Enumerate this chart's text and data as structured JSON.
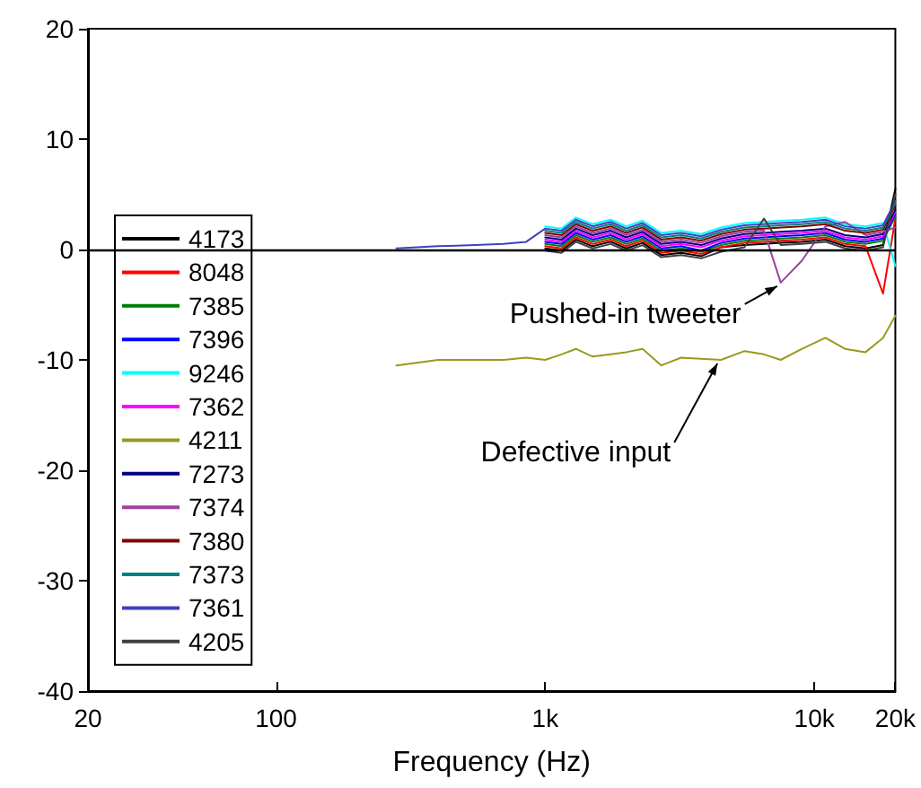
{
  "chart_data": {
    "type": "line",
    "xlabel": "Frequency (Hz)",
    "log": "x",
    "legend": "left",
    "grid": false,
    "line_style": "solid",
    "marker": "none",
    "xlim": [
      20,
      20000
    ],
    "xticks": [
      20,
      100,
      {
        "value": 1000,
        "label": "1k"
      },
      {
        "value": 10000,
        "label": "10k"
      },
      {
        "value": 20000,
        "label": "20k"
      }
    ],
    "ylim": [
      -40,
      20
    ],
    "yticks": [
      -40,
      -30,
      -20,
      -10,
      0,
      10,
      20
    ],
    "x": [
      280,
      400,
      550,
      700,
      850,
      1000,
      1150,
      1300,
      1500,
      1750,
      2000,
      2300,
      2700,
      3200,
      3800,
      4500,
      5500,
      6500,
      7500,
      9000,
      11000,
      13000,
      15500,
      18000,
      20000
    ],
    "ref_lines": [
      {
        "axis": "y",
        "value": 0,
        "color": "#000000"
      }
    ],
    "annotations": [
      {
        "text": "Pushed-in tweeter",
        "x": 7500,
        "y": -3
      },
      {
        "text": "Defective input",
        "x": 4500,
        "y": -10
      }
    ],
    "series": [
      {
        "name": "4173",
        "color": "#000000",
        "values": [
          null,
          null,
          null,
          null,
          null,
          0.1,
          -0.1,
          0.9,
          0.3,
          0.7,
          0.1,
          0.6,
          -0.5,
          -0.3,
          -0.6,
          0.2,
          0.4,
          0.5,
          0.6,
          0.7,
          0.9,
          0.3,
          0.1,
          0.4,
          5.5
        ]
      },
      {
        "name": "8048",
        "color": "#ff0000",
        "values": [
          null,
          null,
          null,
          null,
          null,
          0.3,
          0.1,
          1.1,
          0.5,
          0.9,
          0.3,
          0.8,
          -0.3,
          -0.1,
          -0.4,
          0.2,
          0.6,
          0.7,
          0.8,
          0.9,
          1.1,
          0.5,
          0.3,
          -4.0,
          2.8
        ]
      },
      {
        "name": "7385",
        "color": "#008000",
        "values": [
          null,
          null,
          null,
          null,
          null,
          0.5,
          0.3,
          1.3,
          0.7,
          1.1,
          0.5,
          1.0,
          -0.1,
          0.1,
          -0.2,
          0.4,
          0.8,
          0.9,
          1.0,
          1.1,
          1.3,
          0.7,
          0.5,
          0.8,
          3.0
        ]
      },
      {
        "name": "7396",
        "color": "#0000ff",
        "values": [
          null,
          null,
          null,
          null,
          null,
          0.7,
          0.5,
          1.5,
          0.9,
          1.3,
          0.7,
          1.2,
          0.1,
          0.3,
          -0.1,
          0.6,
          1.0,
          1.1,
          1.2,
          1.3,
          1.5,
          0.9,
          0.7,
          1.0,
          3.2
        ]
      },
      {
        "name": "9246",
        "color": "#00ffff",
        "values": [
          null,
          null,
          null,
          null,
          null,
          2.1,
          1.9,
          2.9,
          2.3,
          2.7,
          2.1,
          2.6,
          1.5,
          1.7,
          1.4,
          2.0,
          2.4,
          2.5,
          2.6,
          2.7,
          2.9,
          2.3,
          2.1,
          2.4,
          -1.5
        ]
      },
      {
        "name": "7362",
        "color": "#ff00ff",
        "values": [
          null,
          null,
          null,
          null,
          null,
          0.9,
          0.7,
          1.7,
          1.1,
          1.5,
          0.9,
          1.4,
          0.3,
          0.5,
          0.2,
          0.8,
          1.2,
          1.3,
          1.4,
          1.5,
          1.7,
          1.1,
          0.9,
          1.2,
          3.4
        ]
      },
      {
        "name": "4211",
        "color": "#999920",
        "values": [
          -10.5,
          -10.0,
          -10.0,
          -10.0,
          -9.8,
          -10.0,
          -9.5,
          -9.0,
          -9.7,
          -9.5,
          -9.3,
          -9.0,
          -10.5,
          -9.8,
          -9.9,
          -10.0,
          -9.2,
          -9.5,
          -10.0,
          -9.0,
          -8.0,
          -9.0,
          -9.3,
          -8.0,
          -6.0
        ]
      },
      {
        "name": "7273",
        "color": "#000080",
        "values": [
          null,
          null,
          null,
          null,
          null,
          1.1,
          0.9,
          1.9,
          1.3,
          1.7,
          1.1,
          1.6,
          0.5,
          0.7,
          0.4,
          1.0,
          1.4,
          1.5,
          1.6,
          1.7,
          1.9,
          1.3,
          1.1,
          1.4,
          3.6
        ]
      },
      {
        "name": "7374",
        "color": "#a040a0",
        "values": [
          null,
          null,
          null,
          null,
          null,
          1.3,
          1.1,
          2.1,
          1.5,
          1.9,
          1.3,
          1.8,
          0.7,
          0.9,
          0.6,
          1.2,
          1.6,
          1.7,
          -3.0,
          -1.0,
          2.1,
          2.5,
          1.3,
          1.6,
          2.0
        ]
      },
      {
        "name": "7380",
        "color": "#800000",
        "values": [
          null,
          null,
          null,
          null,
          null,
          1.5,
          1.3,
          2.3,
          1.7,
          2.1,
          1.5,
          2.0,
          0.9,
          1.1,
          0.8,
          1.4,
          1.8,
          1.9,
          2.0,
          2.1,
          2.3,
          1.7,
          1.5,
          1.8,
          4.0
        ]
      },
      {
        "name": "7373",
        "color": "#008080",
        "values": [
          null,
          null,
          null,
          null,
          null,
          1.7,
          1.5,
          2.5,
          1.9,
          2.3,
          1.7,
          2.2,
          1.1,
          1.3,
          1.0,
          1.6,
          2.0,
          2.1,
          2.2,
          2.3,
          2.5,
          1.9,
          1.7,
          2.0,
          4.2
        ]
      },
      {
        "name": "7361",
        "color": "#4040c0",
        "values": [
          0.1,
          0.3,
          0.4,
          0.5,
          0.7,
          1.9,
          1.7,
          2.7,
          2.1,
          2.5,
          1.9,
          2.4,
          1.3,
          1.5,
          1.2,
          1.8,
          2.2,
          2.3,
          2.4,
          2.5,
          2.7,
          2.1,
          1.9,
          2.2,
          4.4
        ]
      },
      {
        "name": "4205",
        "color": "#404040",
        "values": [
          null,
          null,
          null,
          null,
          null,
          -0.1,
          -0.3,
          0.7,
          0.1,
          0.5,
          -0.1,
          0.4,
          -0.7,
          -0.5,
          -0.8,
          -0.2,
          0.2,
          2.8,
          0.4,
          0.5,
          0.7,
          0.1,
          -0.1,
          0.2,
          5.0
        ]
      }
    ]
  }
}
